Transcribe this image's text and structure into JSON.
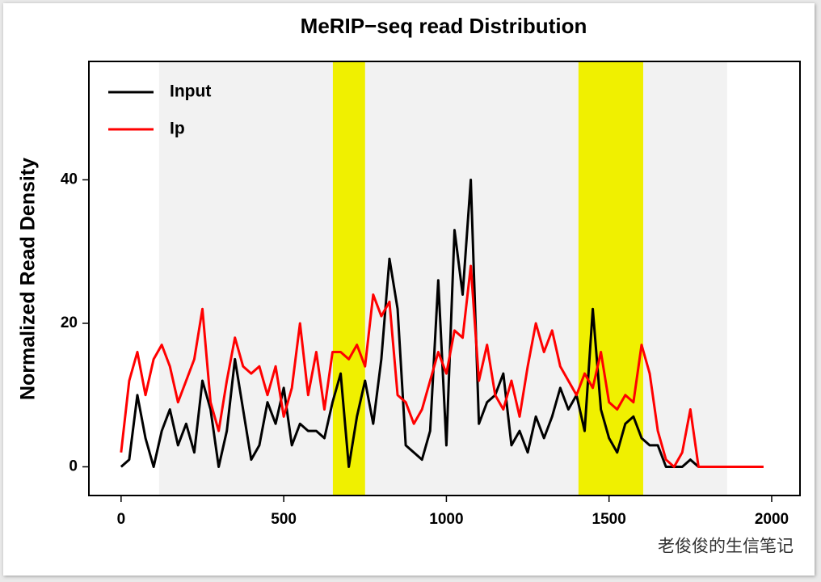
{
  "chart_data": {
    "type": "line",
    "title": "MeRIP−seq read Distribution",
    "y_label": "Normalized Read Density",
    "watermark": "老俊俊的生信笔记",
    "xlim": [
      -99,
      2087
    ],
    "ylim": [
      -4,
      56.5
    ],
    "xticks": [
      0,
      500,
      1000,
      1500,
      2000
    ],
    "yticks": [
      0,
      20,
      40
    ],
    "legend": "top-left",
    "regions": [
      {
        "x0": 117,
        "x1": 1863,
        "color": "#f2f2f2"
      },
      {
        "x0": 651,
        "x1": 750,
        "color": "#f0f000"
      },
      {
        "x0": 1406,
        "x1": 1605,
        "color": "#f0f000"
      }
    ],
    "x": [
      0,
      25,
      50,
      75,
      100,
      125,
      150,
      175,
      200,
      225,
      250,
      275,
      300,
      325,
      350,
      375,
      400,
      425,
      450,
      475,
      500,
      525,
      550,
      575,
      600,
      625,
      650,
      675,
      700,
      725,
      750,
      775,
      800,
      825,
      850,
      875,
      900,
      925,
      950,
      975,
      1000,
      1025,
      1050,
      1075,
      1100,
      1125,
      1150,
      1175,
      1200,
      1225,
      1250,
      1275,
      1300,
      1325,
      1350,
      1375,
      1400,
      1425,
      1450,
      1475,
      1500,
      1525,
      1550,
      1575,
      1600,
      1625,
      1650,
      1675,
      1700,
      1725,
      1750,
      1775,
      1800,
      1825,
      1850,
      1875,
      1900,
      1925,
      1950,
      1975
    ],
    "series": [
      {
        "name": "Input",
        "color": "#000000",
        "values": [
          0,
          1,
          10,
          4,
          0,
          5,
          8,
          3,
          6,
          2,
          12,
          8,
          0,
          5,
          15,
          8,
          1,
          3,
          9,
          6,
          11,
          3,
          6,
          5,
          5,
          4,
          9,
          13,
          0,
          7,
          12,
          6,
          15,
          29,
          22,
          3,
          2,
          1,
          5,
          26,
          3,
          33,
          24,
          40,
          6,
          9,
          10,
          13,
          3,
          5,
          2,
          7,
          4,
          7,
          11,
          8,
          10,
          5,
          22,
          8,
          4,
          2,
          6,
          7,
          4,
          3,
          3,
          0,
          0,
          0,
          1,
          0,
          null,
          null,
          null,
          null,
          null,
          null,
          null,
          null
        ]
      },
      {
        "name": "Ip",
        "color": "#ff0000",
        "values": [
          2,
          12,
          16,
          10,
          15,
          17,
          14,
          9,
          12,
          15,
          22,
          9,
          5,
          12,
          18,
          14,
          13,
          14,
          10,
          14,
          7,
          11,
          20,
          10,
          16,
          8,
          16,
          16,
          15,
          17,
          14,
          24,
          21,
          23,
          10,
          9,
          6,
          8,
          12,
          16,
          13,
          19,
          18,
          28,
          12,
          17,
          10,
          8,
          12,
          7,
          14,
          20,
          16,
          19,
          14,
          12,
          10,
          13,
          11,
          16,
          9,
          8,
          10,
          9,
          17,
          13,
          5,
          1,
          0,
          2,
          8,
          0,
          0,
          0,
          0,
          0,
          0,
          0,
          0,
          0
        ]
      }
    ]
  }
}
